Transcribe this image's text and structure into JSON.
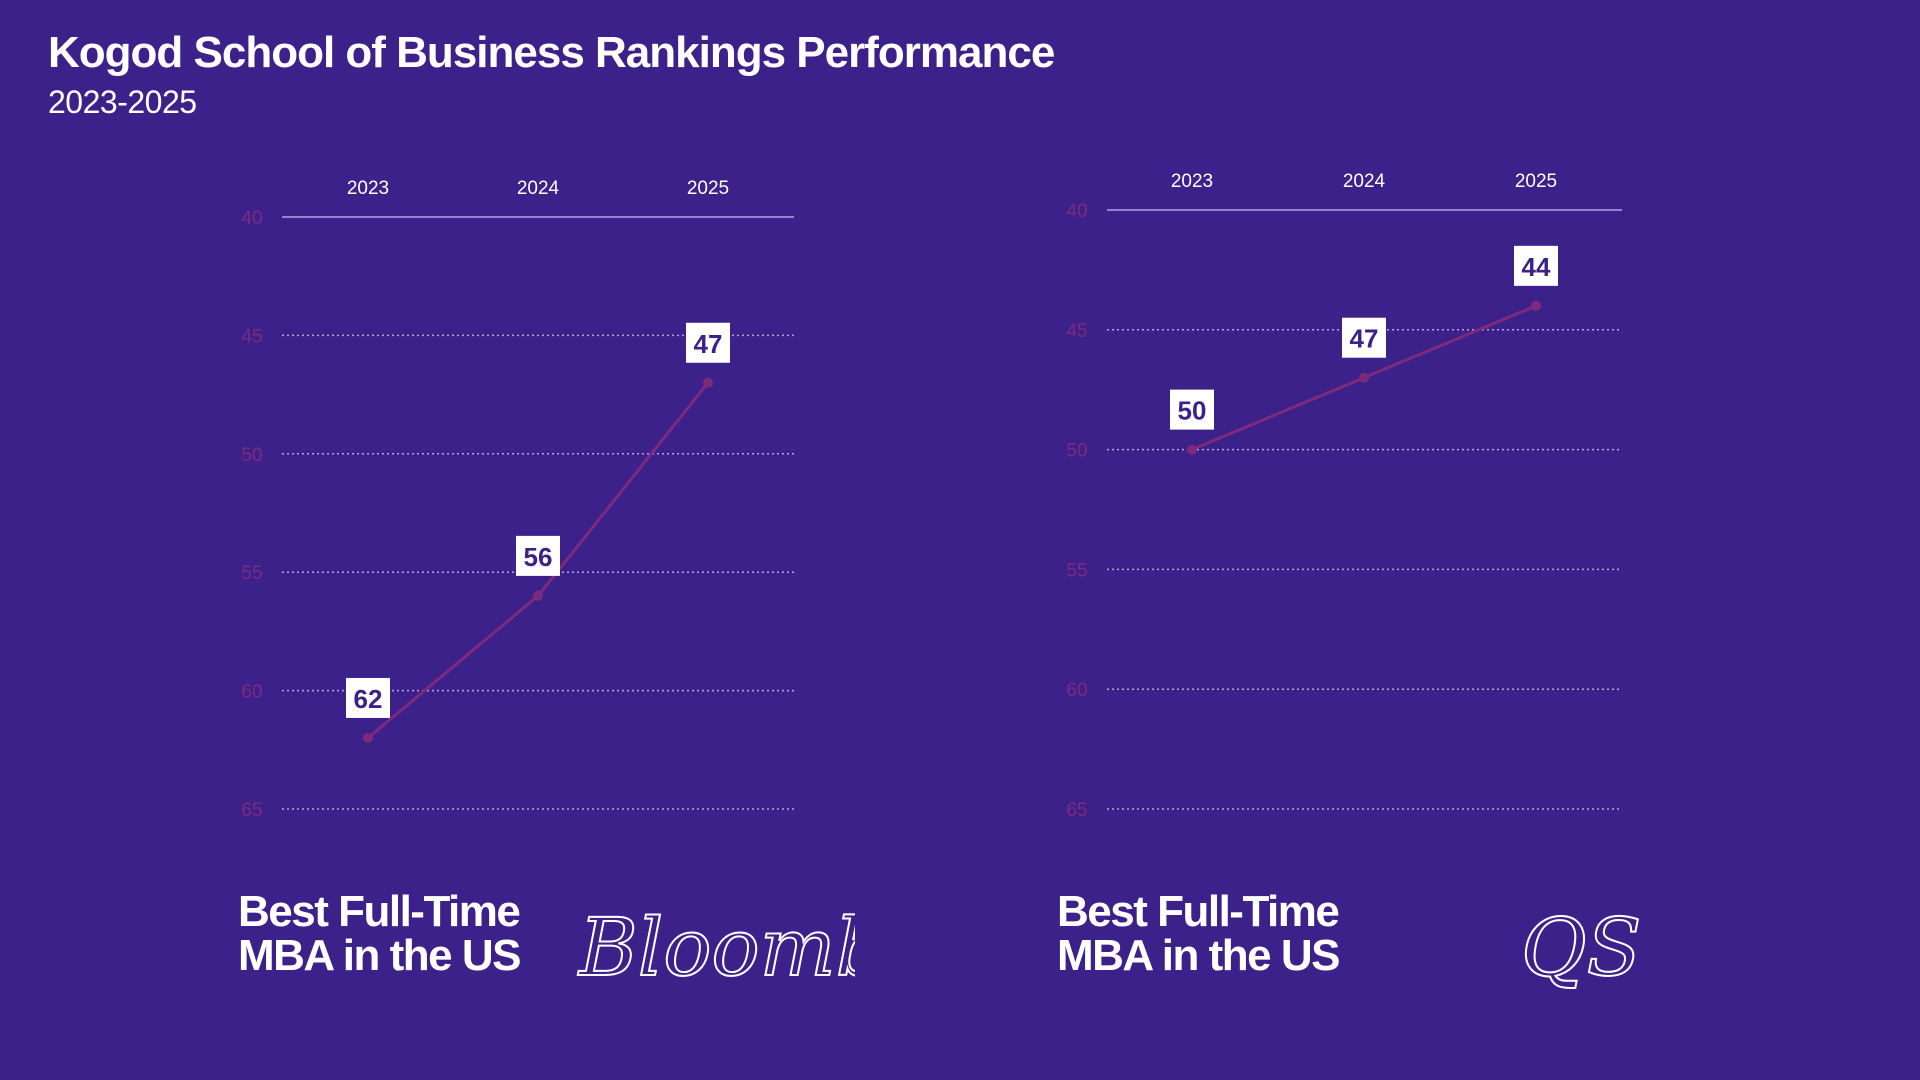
{
  "title": "Kogod School of Business Rankings Performance",
  "subtitle": "2023-2025",
  "colors": {
    "background": "#3c218b",
    "line": "#7e2a7c",
    "grid": "#b3a3df",
    "label_box": "#ffffff",
    "label_text": "#3c218b"
  },
  "chart_data": [
    {
      "type": "line",
      "x": [
        "2023",
        "2024",
        "2025"
      ],
      "values": [
        62,
        56,
        47
      ],
      "y_ticks": [
        40,
        45,
        50,
        55,
        60,
        65
      ],
      "ylim": [
        40,
        65
      ],
      "y_inverted": true,
      "grid": true,
      "caption_lines": [
        "Best Full-Time",
        "MBA in the US"
      ],
      "source": "Bloomberg"
    },
    {
      "type": "line",
      "x": [
        "2023",
        "2024",
        "2025"
      ],
      "values": [
        50,
        47,
        44
      ],
      "y_ticks": [
        40,
        45,
        50,
        55,
        60,
        65
      ],
      "ylim": [
        40,
        65
      ],
      "y_inverted": true,
      "grid": true,
      "caption_lines": [
        "Best Full-Time",
        "MBA in the US"
      ],
      "source": "QS"
    }
  ]
}
